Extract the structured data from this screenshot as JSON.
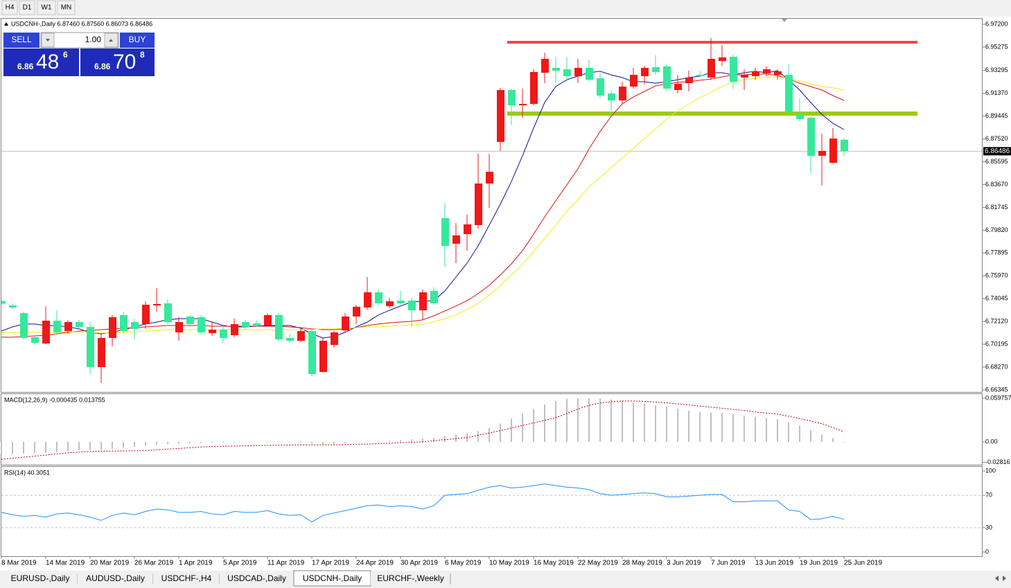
{
  "toolbar": {
    "timeframes": [
      "H4",
      "D1",
      "W1",
      "MN"
    ]
  },
  "trade_panel": {
    "sell": "SELL",
    "buy": "BUY",
    "lots": "1.00",
    "sell_price": {
      "big_figure": "6.86",
      "pips": "48",
      "fraction": "6"
    },
    "buy_price": {
      "big_figure": "6.86",
      "pips": "70",
      "fraction": "8"
    }
  },
  "tabs": {
    "items": [
      "EURUSD-,Daily",
      "AUDUSD-,Daily",
      "USDCHF-,H4",
      "USDCAD-,Daily",
      "USDCNH-,Daily",
      "EURCHF-,Weekly"
    ],
    "active": 4
  },
  "chart_data": [
    {
      "type": "candlestick",
      "title": "USDCNH-,Daily 6.87460 6.87560 6.86073 6.86486",
      "categories": [
        "8 Mar 2019",
        null,
        null,
        null,
        "14 Mar 2019",
        null,
        null,
        null,
        "20 Mar 2019",
        null,
        null,
        null,
        "26 Mar 2019",
        null,
        null,
        null,
        "1 Apr 2019",
        null,
        null,
        null,
        "5 Apr 2019",
        null,
        null,
        null,
        "11 Apr 2019",
        null,
        null,
        null,
        "17 Apr 2019",
        null,
        null,
        null,
        "24 Apr 2019",
        null,
        null,
        null,
        "30 Apr 2019",
        null,
        null,
        null,
        "6 May 2019",
        null,
        null,
        null,
        "10 May 2019",
        null,
        null,
        null,
        "16 May 2019",
        null,
        null,
        null,
        "22 May 2019",
        null,
        null,
        null,
        "28 May 2019",
        null,
        null,
        null,
        "3 Jun 2019",
        null,
        null,
        null,
        "7 Jun 2019",
        null,
        null,
        null,
        "13 Jun 2019",
        null,
        null,
        null,
        "19 Jun 2019",
        null,
        null,
        null,
        "25 Jun 2019"
      ],
      "open": [
        6.7385,
        6.7347,
        6.7283,
        6.7079,
        6.7026,
        6.7219,
        6.7131,
        6.7207,
        6.7166,
        6.6827,
        6.7073,
        6.7266,
        6.7207,
        6.719,
        6.7347,
        6.7365,
        6.712,
        6.7254,
        6.7248,
        6.7114,
        6.7143,
        6.7096,
        6.7207,
        6.7196,
        6.7178,
        6.7266,
        6.7073,
        6.7049,
        6.7131,
        6.6786,
        6.7014,
        6.7137,
        6.7254,
        6.733,
        6.7458,
        6.7341,
        6.7388,
        6.7388,
        6.7306,
        6.747,
        6.8084,
        6.7868,
        6.7949,
        6.8025,
        6.8376,
        6.8727,
        6.9165,
        6.9036,
        6.9048,
        6.9311,
        6.9352,
        6.934,
        6.9282,
        6.9352,
        6.9264,
        6.9136,
        6.9077,
        6.9194,
        6.9282,
        6.9358,
        6.9364,
        6.9165,
        6.9223,
        6.9293,
        6.927,
        6.941,
        6.9445,
        6.927,
        6.9282,
        6.9305,
        6.9293,
        6.9293,
        6.896,
        6.8931,
        6.861,
        6.8551,
        6.8746
      ],
      "high": [
        6.741,
        6.7365,
        6.7295,
        6.709,
        6.7341,
        6.7306,
        6.7225,
        6.7225,
        6.7207,
        6.7108,
        6.7266,
        6.7295,
        6.7236,
        6.7382,
        6.7493,
        6.74,
        6.7248,
        6.7266,
        6.7266,
        6.7207,
        6.7178,
        6.7236,
        6.7225,
        6.7225,
        6.7283,
        6.7283,
        6.7108,
        6.7149,
        6.7149,
        6.7073,
        6.7131,
        6.7283,
        6.7353,
        6.7587,
        6.7482,
        6.7412,
        6.747,
        6.7412,
        6.7482,
        6.7499,
        6.8212,
        6.8043,
        6.8113,
        6.8627,
        6.8627,
        6.9182,
        6.9177,
        6.9177,
        6.934,
        6.948,
        6.9445,
        6.9445,
        6.9428,
        6.9422,
        6.9311,
        6.9165,
        6.9235,
        6.9352,
        6.9369,
        6.9457,
        6.9381,
        6.9293,
        6.9328,
        6.9328,
        6.9603,
        6.9545,
        6.9469,
        6.934,
        6.9352,
        6.9364,
        6.934,
        6.9381,
        6.9095,
        6.8943,
        6.8797,
        6.8844,
        6.8756
      ],
      "low": [
        6.7345,
        6.7318,
        6.7061,
        6.7014,
        6.702,
        6.7102,
        6.7108,
        6.7149,
        6.6769,
        6.6693,
        6.7002,
        6.7108,
        6.7061,
        6.7149,
        6.7295,
        6.719,
        6.7049,
        6.7166,
        6.7102,
        6.709,
        6.7032,
        6.7079,
        6.7149,
        6.7166,
        6.7166,
        6.7043,
        6.7032,
        6.7038,
        6.6751,
        6.6781,
        6.6991,
        6.712,
        6.719,
        6.7312,
        6.7341,
        6.7324,
        6.7353,
        6.7166,
        6.7225,
        6.7353,
        6.7675,
        6.7704,
        6.7809,
        6.7996,
        6.8171,
        6.8651,
        6.8873,
        6.8931,
        6.9036,
        6.9223,
        6.9223,
        6.9235,
        6.9223,
        6.9235,
        6.9095,
        6.8989,
        6.9048,
        6.9177,
        6.9212,
        6.9293,
        6.9153,
        6.9136,
        6.9153,
        6.927,
        6.9252,
        6.9369,
        6.9177,
        6.9165,
        6.9252,
        6.9282,
        6.9252,
        6.896,
        6.8902,
        6.8464,
        6.8358,
        6.8545,
        6.8607
      ],
      "close": [
        6.7362,
        6.733,
        6.7073,
        6.7032,
        6.7219,
        6.712,
        6.7207,
        6.7166,
        6.6827,
        6.7073,
        6.7248,
        6.7131,
        6.7149,
        6.7353,
        6.7359,
        6.7207,
        6.7207,
        6.719,
        6.712,
        6.7143,
        6.7073,
        6.719,
        6.7166,
        6.7178,
        6.7266,
        6.7061,
        6.7049,
        6.7131,
        6.6769,
        6.7049,
        6.712,
        6.7254,
        6.7336,
        6.7458,
        6.7365,
        6.7382,
        6.7365,
        6.7306,
        6.7458,
        6.7365,
        6.785,
        6.7938,
        6.8031,
        6.8376,
        6.8475,
        6.9165,
        6.9036,
        6.9048,
        6.9317,
        6.9428,
        6.9328,
        6.9282,
        6.9352,
        6.9252,
        6.9118,
        6.9077,
        6.9194,
        6.9293,
        6.9352,
        6.9317,
        6.9177,
        6.9217,
        6.927,
        6.9282,
        6.9428,
        6.944,
        6.9235,
        6.9293,
        6.9323,
        6.934,
        6.9323,
        6.8978,
        6.8919,
        6.861,
        6.8651,
        6.8756,
        6.86486
      ],
      "up_color": "#f01818",
      "down_color": "#36e89c",
      "lines": [
        {
          "color": "#10109a",
          "values": [
            6.7131,
            6.7166,
            6.719,
            6.719,
            6.7178,
            6.7178,
            6.7166,
            6.7149,
            6.712,
            6.7108,
            6.712,
            6.7143,
            6.7166,
            6.719,
            6.7207,
            6.7225,
            6.7236,
            6.7236,
            6.7236,
            6.7207,
            6.7178,
            6.7166,
            6.7166,
            6.7172,
            6.7178,
            6.7178,
            6.7178,
            6.7155,
            6.7108,
            6.7073,
            6.7085,
            6.712,
            6.7166,
            6.7207,
            6.7266,
            6.7306,
            6.7342,
            6.7377,
            6.7382,
            6.7388,
            6.747,
            6.7587,
            6.7704,
            6.785,
            6.8025,
            6.8201,
            6.8393,
            6.861,
            6.8843,
            6.906,
            6.9194,
            6.9252,
            6.9282,
            6.9311,
            6.9323,
            6.9293,
            6.927,
            6.9235,
            6.9235,
            6.9223,
            6.9235,
            6.9252,
            6.927,
            6.9282,
            6.9311,
            6.9311,
            6.9293,
            6.9311,
            6.9323,
            6.9311,
            6.9328,
            6.9252,
            6.9165,
            6.906,
            6.896,
            6.8884,
            6.8832
          ]
        },
        {
          "color": "#dc1010",
          "values": [
            6.7079,
            6.7079,
            6.7085,
            6.709,
            6.7096,
            6.7108,
            6.712,
            6.7131,
            6.7137,
            6.7143,
            6.7149,
            6.7155,
            6.716,
            6.7166,
            6.7172,
            6.7178,
            6.7178,
            6.7178,
            6.7178,
            6.7172,
            6.7172,
            6.7172,
            6.7172,
            6.7172,
            6.7172,
            6.7172,
            6.7166,
            6.716,
            6.7149,
            6.7143,
            6.7143,
            6.7149,
            6.716,
            6.7178,
            6.719,
            6.7201,
            6.7207,
            6.7213,
            6.7225,
            6.726,
            6.7301,
            6.7342,
            6.7388,
            6.7447,
            6.7517,
            6.7604,
            6.7698,
            6.7809,
            6.7949,
            6.8095,
            6.823,
            6.8364,
            6.8499,
            6.8668,
            6.8814,
            6.8943,
            6.9048,
            6.9106,
            6.9153,
            6.92,
            6.9217,
            6.9229,
            6.9235,
            6.9247,
            6.9258,
            6.9276,
            6.9293,
            6.9293,
            6.9299,
            6.9299,
            6.9288,
            6.9258,
            6.9223,
            6.9194,
            6.9165,
            6.9118,
            6.9077
          ]
        },
        {
          "color": "#f2ee10",
          "values": [
            6.712,
            6.712,
            6.712,
            6.712,
            6.712,
            6.712,
            6.7125,
            6.7125,
            6.712,
            6.7114,
            6.7114,
            6.712,
            6.7125,
            6.7131,
            6.7137,
            6.7143,
            6.7143,
            6.7143,
            6.7143,
            6.7143,
            6.7143,
            6.7143,
            6.7143,
            6.7143,
            6.7143,
            6.7143,
            6.7143,
            6.7143,
            6.7143,
            6.7149,
            6.7149,
            6.7155,
            6.716,
            6.7166,
            6.7166,
            6.7172,
            6.7178,
            6.7184,
            6.719,
            6.7207,
            6.7236,
            6.7266,
            6.7312,
            6.7365,
            6.7435,
            6.7517,
            6.7604,
            6.7692,
            6.7803,
            6.7914,
            6.8025,
            6.8142,
            6.8241,
            6.8347,
            6.8428,
            6.851,
            6.8592,
            6.8674,
            6.8756,
            6.8838,
            6.8919,
            6.8989,
            6.9048,
            6.9101,
            6.9147,
            6.9194,
            6.9235,
            6.9252,
            6.9264,
            6.927,
            6.9276,
            6.9264,
            6.9241,
            6.9217,
            6.9194,
            6.9183,
            6.9165
          ]
        }
      ],
      "hlines": [
        {
          "value": 6.9568,
          "color": "#f04848"
        },
        {
          "value": 6.8966,
          "color": "#9ccc00"
        }
      ],
      "last_price": 6.86486,
      "ylim": [
        6.66169,
        6.97668
      ],
      "yticks": [
        {
          "value": 6.972,
          "label": "6.97200"
        },
        6.95275,
        6.93295,
        {
          "value": 6.9137,
          "label": "6.91370"
        },
        6.89445,
        {
          "value": 6.8752,
          "label": "6.87520"
        },
        6.85595,
        {
          "value": 6.8367,
          "label": "6.83670"
        },
        6.81745,
        {
          "value": 6.7982,
          "label": "6.79820"
        },
        6.77895,
        {
          "value": 6.7597,
          "label": "6.75970"
        },
        6.74045,
        {
          "value": 6.7212,
          "label": "6.72120"
        },
        6.70195,
        {
          "value": 6.6827,
          "label": "6.68270"
        },
        6.66345
      ]
    },
    {
      "type": "bar",
      "title": "MACD(12,26,9) -0.000435 0.013755",
      "values": [
        -0.017,
        -0.0165,
        -0.016,
        -0.0155,
        -0.015,
        -0.014,
        -0.013,
        -0.0115,
        -0.011,
        -0.011,
        -0.0095,
        -0.008,
        -0.007,
        -0.0055,
        -0.004,
        -0.003,
        -0.0025,
        -0.002,
        -0.0015,
        -0.0012,
        -0.001,
        -0.0008,
        -0.0006,
        -0.0005,
        -0.0004,
        -0.0005,
        -0.0008,
        -0.001,
        -0.002,
        -0.003,
        -0.003,
        -0.002,
        -0.001,
        0,
        0.001,
        0.0015,
        0.0025,
        0.0035,
        0.0045,
        0.0055,
        0.008,
        0.01,
        0.012,
        0.015,
        0.019,
        0.025,
        0.032,
        0.039,
        0.045,
        0.051,
        0.056,
        0.059,
        0.06,
        0.06,
        0.0595,
        0.058,
        0.056,
        0.054,
        0.052,
        0.05,
        0.048,
        0.0455,
        0.043,
        0.041,
        0.04,
        0.0395,
        0.038,
        0.036,
        0.0345,
        0.033,
        0.031,
        0.027,
        0.0225,
        0.016,
        0.01,
        0.005,
        -0.000435
      ],
      "color": "#c0c0c0",
      "signal": {
        "color": "#c00000",
        "values": [
          -0.024,
          -0.0225,
          -0.021,
          -0.0195,
          -0.018,
          -0.0165,
          -0.015,
          -0.014,
          -0.013,
          -0.0128,
          -0.0126,
          -0.0124,
          -0.0122,
          -0.0118,
          -0.011,
          -0.01,
          -0.009,
          -0.008,
          -0.007,
          -0.0065,
          -0.006,
          -0.0057,
          -0.0054,
          -0.0051,
          -0.0048,
          -0.0046,
          -0.0044,
          -0.0043,
          -0.0042,
          -0.0041,
          -0.004,
          -0.0037,
          -0.0034,
          -0.003,
          -0.0024,
          -0.0018,
          -0.0012,
          -0.0006,
          0,
          0.0015,
          0.003,
          0.0045,
          0.006,
          0.009,
          0.012,
          0.0155,
          0.019,
          0.0225,
          0.026,
          0.0295,
          0.033,
          0.039,
          0.045,
          0.05,
          0.053,
          0.055,
          0.056,
          0.056,
          0.0555,
          0.0545,
          0.0535,
          0.052,
          0.0505,
          0.049,
          0.0475,
          0.046,
          0.0445,
          0.043,
          0.041,
          0.0395,
          0.038,
          0.035,
          0.032,
          0.0285,
          0.025,
          0.0195,
          0.013755
        ]
      },
      "ylim": [
        -0.03131,
        0.06546
      ],
      "yticks": [
        0.059757,
        {
          "value": 0,
          "label": "0.00"
        },
        -0.02816
      ]
    },
    {
      "type": "line",
      "title": "RSI(14) 40.3051",
      "values": [
        49,
        46,
        44,
        45,
        43,
        47,
        48,
        46,
        43,
        39,
        45,
        48,
        46,
        50,
        53,
        52,
        49,
        49,
        50,
        47,
        46,
        50,
        49,
        49,
        51,
        47,
        45,
        46,
        37,
        45,
        48,
        51,
        54,
        57,
        58,
        56,
        57,
        56,
        53,
        57,
        70,
        71,
        72,
        76,
        80,
        82,
        79,
        80,
        82,
        84,
        82,
        80,
        79,
        77,
        72,
        70,
        71,
        72,
        73,
        72,
        68,
        68,
        69,
        70,
        71,
        71,
        62,
        62,
        63,
        63,
        63,
        52,
        50,
        40,
        41,
        44,
        40.3051
      ],
      "color": "#1e90ff",
      "levels": [
        70,
        30
      ],
      "ylim": [
        -5.13,
        105.13
      ],
      "yticks": [
        100,
        70,
        30,
        0
      ]
    }
  ]
}
